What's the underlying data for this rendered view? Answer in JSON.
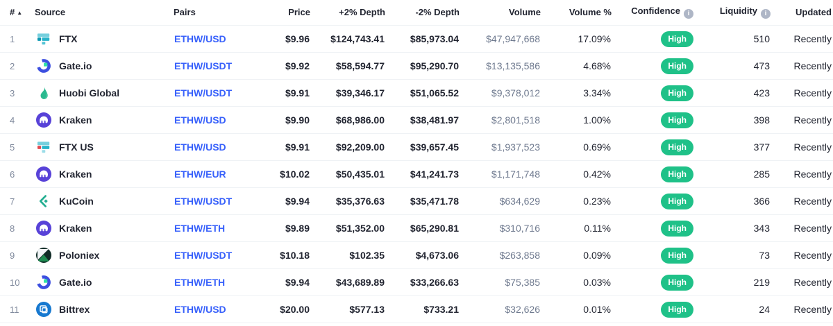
{
  "colors": {
    "link_blue": "#3861fb",
    "badge_green": "#1fc188",
    "muted_gray": "#808a9d",
    "dark_text": "#222531",
    "row_border": "#eff2f5"
  },
  "table": {
    "headers": [
      {
        "label": "#",
        "sorted": "ascending"
      },
      {
        "label": "Source"
      },
      {
        "label": "Pairs"
      },
      {
        "label": "Price"
      },
      {
        "label": "+2% Depth"
      },
      {
        "label": "-2% Depth"
      },
      {
        "label": "Volume"
      },
      {
        "label": "Volume %"
      },
      {
        "label": "Confidence",
        "info_icon": true
      },
      {
        "label": "Liquidity",
        "info_icon": true
      },
      {
        "label": "Updated"
      }
    ],
    "rows": [
      {
        "rank": "1",
        "source": "FTX",
        "icon": "ftx",
        "pair": "ETHW/USD",
        "price": "$9.96",
        "plus_depth": "$124,743.41",
        "minus_depth": "$85,973.04",
        "volume": "$47,947,668",
        "volume_pct": "17.09%",
        "confidence": "High",
        "liquidity": "510",
        "updated": "Recently"
      },
      {
        "rank": "2",
        "source": "Gate.io",
        "icon": "gateio",
        "pair": "ETHW/USDT",
        "price": "$9.92",
        "plus_depth": "$58,594.77",
        "minus_depth": "$95,290.70",
        "volume": "$13,135,586",
        "volume_pct": "4.68%",
        "confidence": "High",
        "liquidity": "473",
        "updated": "Recently"
      },
      {
        "rank": "3",
        "source": "Huobi Global",
        "icon": "huobi",
        "pair": "ETHW/USDT",
        "price": "$9.91",
        "plus_depth": "$39,346.17",
        "minus_depth": "$51,065.52",
        "volume": "$9,378,012",
        "volume_pct": "3.34%",
        "confidence": "High",
        "liquidity": "423",
        "updated": "Recently"
      },
      {
        "rank": "4",
        "source": "Kraken",
        "icon": "kraken",
        "pair": "ETHW/USD",
        "price": "$9.90",
        "plus_depth": "$68,986.00",
        "minus_depth": "$38,481.97",
        "volume": "$2,801,518",
        "volume_pct": "1.00%",
        "confidence": "High",
        "liquidity": "398",
        "updated": "Recently"
      },
      {
        "rank": "5",
        "source": "FTX US",
        "icon": "ftx_us",
        "pair": "ETHW/USD",
        "price": "$9.91",
        "plus_depth": "$92,209.00",
        "minus_depth": "$39,657.45",
        "volume": "$1,937,523",
        "volume_pct": "0.69%",
        "confidence": "High",
        "liquidity": "377",
        "updated": "Recently"
      },
      {
        "rank": "6",
        "source": "Kraken",
        "icon": "kraken",
        "pair": "ETHW/EUR",
        "price": "$10.02",
        "plus_depth": "$50,435.01",
        "minus_depth": "$41,241.73",
        "volume": "$1,171,748",
        "volume_pct": "0.42%",
        "confidence": "High",
        "liquidity": "285",
        "updated": "Recently"
      },
      {
        "rank": "7",
        "source": "KuCoin",
        "icon": "kucoin",
        "pair": "ETHW/USDT",
        "price": "$9.94",
        "plus_depth": "$35,376.63",
        "minus_depth": "$35,471.78",
        "volume": "$634,629",
        "volume_pct": "0.23%",
        "confidence": "High",
        "liquidity": "366",
        "updated": "Recently"
      },
      {
        "rank": "8",
        "source": "Kraken",
        "icon": "kraken",
        "pair": "ETHW/ETH",
        "price": "$9.89",
        "plus_depth": "$51,352.00",
        "minus_depth": "$65,290.81",
        "volume": "$310,716",
        "volume_pct": "0.11%",
        "confidence": "High",
        "liquidity": "343",
        "updated": "Recently"
      },
      {
        "rank": "9",
        "source": "Poloniex",
        "icon": "poloniex",
        "pair": "ETHW/USDT",
        "price": "$10.18",
        "plus_depth": "$102.35",
        "minus_depth": "$4,673.06",
        "volume": "$263,858",
        "volume_pct": "0.09%",
        "confidence": "High",
        "liquidity": "73",
        "updated": "Recently"
      },
      {
        "rank": "10",
        "source": "Gate.io",
        "icon": "gateio",
        "pair": "ETHW/ETH",
        "price": "$9.94",
        "plus_depth": "$43,689.89",
        "minus_depth": "$33,266.63",
        "volume": "$75,385",
        "volume_pct": "0.03%",
        "confidence": "High",
        "liquidity": "219",
        "updated": "Recently"
      },
      {
        "rank": "11",
        "source": "Bittrex",
        "icon": "bittrex",
        "pair": "ETHW/USD",
        "price": "$20.00",
        "plus_depth": "$577.13",
        "minus_depth": "$733.21",
        "volume": "$32,626",
        "volume_pct": "0.01%",
        "confidence": "High",
        "liquidity": "24",
        "updated": "Recently"
      }
    ]
  }
}
